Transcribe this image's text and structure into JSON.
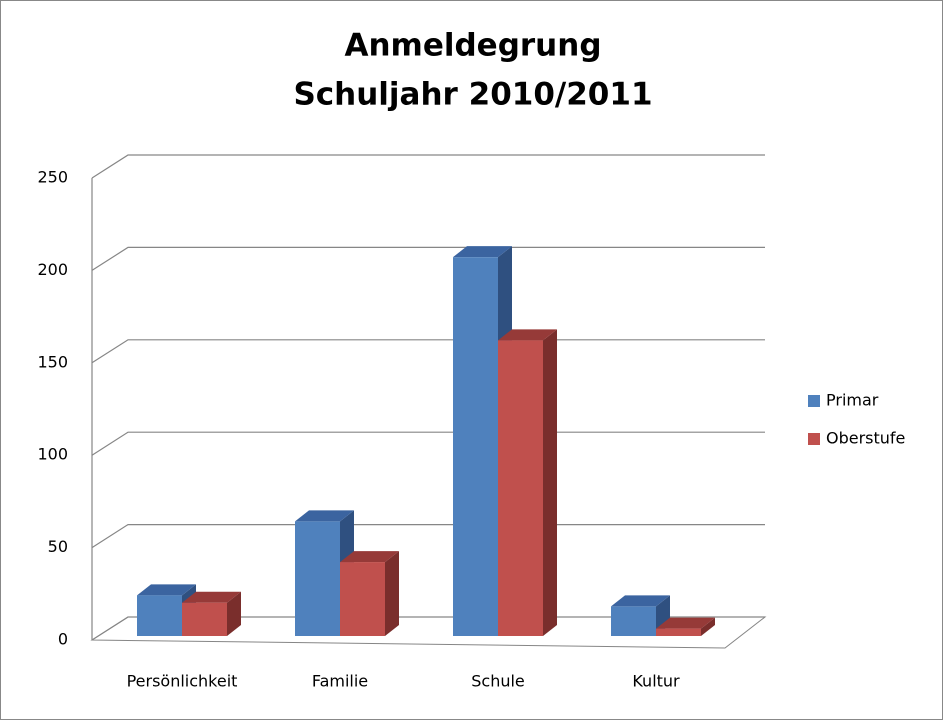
{
  "chart_data": {
    "type": "bar3d",
    "title": [
      "Anmeldegrung",
      "Schuljahr 2010/2011"
    ],
    "categories": [
      "Persönlichkeit",
      "Familie",
      "Schule",
      "Kultur"
    ],
    "series": [
      {
        "name": "Primar",
        "color": "#4f81bd",
        "values": [
          22,
          62,
          205,
          16
        ]
      },
      {
        "name": "Oberstufe",
        "color": "#c0504d",
        "values": [
          18,
          40,
          160,
          4
        ]
      }
    ],
    "ylim": [
      0,
      250
    ],
    "yticks": [
      0,
      50,
      100,
      150,
      200,
      250
    ],
    "grid": true,
    "legend": "right"
  }
}
